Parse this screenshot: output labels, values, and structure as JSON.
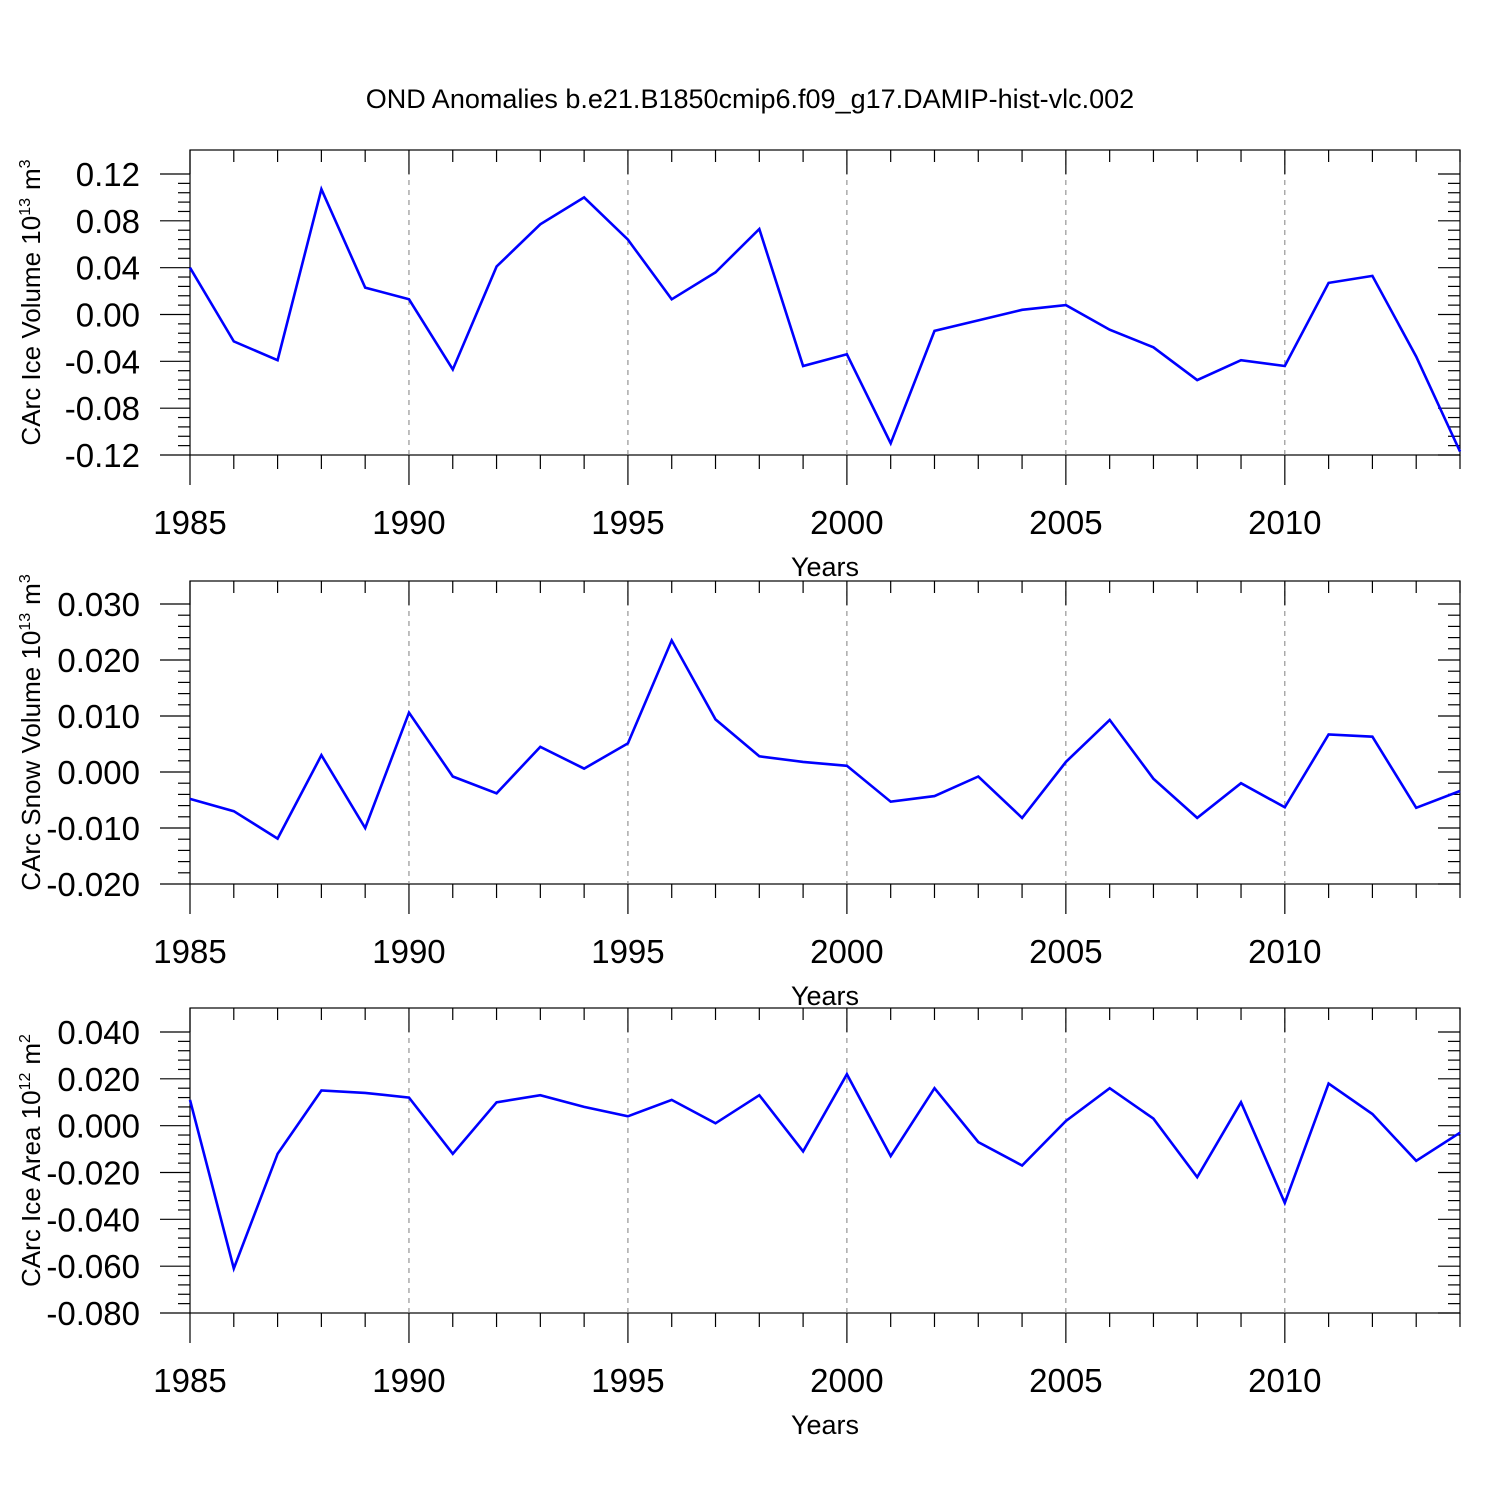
{
  "title": "OND Anomalies b.e21.B1850cmip6.f09_g17.DAMIP-hist-vlc.002",
  "colors": {
    "series_line": "#0000ff",
    "axis": "#000000",
    "gridline": "#808080"
  },
  "chart_data": [
    {
      "type": "line",
      "ylabel_main": "CArc Ice Volume 10",
      "ylabel_exponent": "13",
      "ylabel_unit": "m",
      "ylabel_unit_exponent": "3",
      "xlabel": "Years",
      "xlim": [
        1985,
        2014
      ],
      "ylim": [
        -0.12,
        0.12
      ],
      "x_ticks": [
        "1985",
        "1990",
        "1995",
        "2000",
        "2005",
        "2010"
      ],
      "y_ticks": [
        "0.12",
        "0.08",
        "0.04",
        "0.00",
        "-0.04",
        "-0.08",
        "-0.12"
      ],
      "grid": "vertical dashed at major x ticks",
      "x": [
        1985,
        1986,
        1987,
        1988,
        1989,
        1990,
        1991,
        1992,
        1993,
        1994,
        1995,
        1996,
        1997,
        1998,
        1999,
        2000,
        2001,
        2002,
        2003,
        2004,
        2005,
        2006,
        2007,
        2008,
        2009,
        2010,
        2011,
        2012,
        2013,
        2014
      ],
      "values": [
        0.04,
        -0.023,
        -0.039,
        0.107,
        0.023,
        0.013,
        -0.047,
        0.041,
        0.077,
        0.1,
        0.064,
        0.013,
        0.036,
        0.073,
        -0.044,
        -0.034,
        -0.11,
        -0.014,
        -0.005,
        0.004,
        0.008,
        -0.013,
        -0.028,
        -0.056,
        -0.039,
        -0.044,
        0.027,
        0.033,
        -0.036,
        -0.117
      ]
    },
    {
      "type": "line",
      "ylabel_main": "CArc Snow Volume 10",
      "ylabel_exponent": "13",
      "ylabel_unit": "m",
      "ylabel_unit_exponent": "3",
      "xlabel": "Years",
      "xlim": [
        1985,
        2014
      ],
      "ylim": [
        -0.02,
        0.03
      ],
      "x_ticks": [
        "1985",
        "1990",
        "1995",
        "2000",
        "2005",
        "2010"
      ],
      "y_ticks": [
        "0.030",
        "0.020",
        "0.010",
        "0.000",
        "-0.010",
        "-0.020"
      ],
      "grid": "vertical dashed at major x ticks",
      "x": [
        1985,
        1986,
        1987,
        1988,
        1989,
        1990,
        1991,
        1992,
        1993,
        1994,
        1995,
        1996,
        1997,
        1998,
        1999,
        2000,
        2001,
        2002,
        2003,
        2004,
        2005,
        2006,
        2007,
        2008,
        2009,
        2010,
        2011,
        2012,
        2013,
        2014
      ],
      "values": [
        -0.0048,
        -0.007,
        -0.0119,
        0.003,
        -0.01,
        0.0106,
        -0.0008,
        -0.0038,
        0.0045,
        0.0006,
        0.0051,
        0.0235,
        0.0094,
        0.0028,
        0.0018,
        0.0011,
        -0.0053,
        -0.0043,
        -0.0008,
        -0.0082,
        0.0018,
        0.0093,
        -0.0012,
        -0.0082,
        -0.002,
        -0.0063,
        0.0067,
        0.0063,
        -0.0064,
        -0.0034
      ]
    },
    {
      "type": "line",
      "ylabel_main": "CArc Ice Area 10",
      "ylabel_exponent": "12",
      "ylabel_unit": "m",
      "ylabel_unit_exponent": "2",
      "xlabel": "Years",
      "xlim": [
        1985,
        2014
      ],
      "ylim": [
        -0.08,
        0.04
      ],
      "x_ticks": [
        "1985",
        "1990",
        "1995",
        "2000",
        "2005",
        "2010"
      ],
      "y_ticks": [
        "0.040",
        "0.020",
        "0.000",
        "-0.020",
        "-0.040",
        "-0.060",
        "-0.080"
      ],
      "grid": "vertical dashed at major x ticks",
      "x": [
        1985,
        1986,
        1987,
        1988,
        1989,
        1990,
        1991,
        1992,
        1993,
        1994,
        1995,
        1996,
        1997,
        1998,
        1999,
        2000,
        2001,
        2002,
        2003,
        2004,
        2005,
        2006,
        2007,
        2008,
        2009,
        2010,
        2011,
        2012,
        2013,
        2014
      ],
      "values": [
        0.011,
        -0.061,
        -0.012,
        0.015,
        0.014,
        0.012,
        -0.012,
        0.01,
        0.013,
        0.008,
        0.004,
        0.011,
        0.001,
        0.013,
        -0.011,
        0.022,
        -0.013,
        0.016,
        -0.007,
        -0.017,
        0.002,
        0.016,
        0.003,
        -0.022,
        0.01,
        -0.033,
        0.018,
        0.005,
        -0.015,
        -0.003
      ]
    }
  ]
}
